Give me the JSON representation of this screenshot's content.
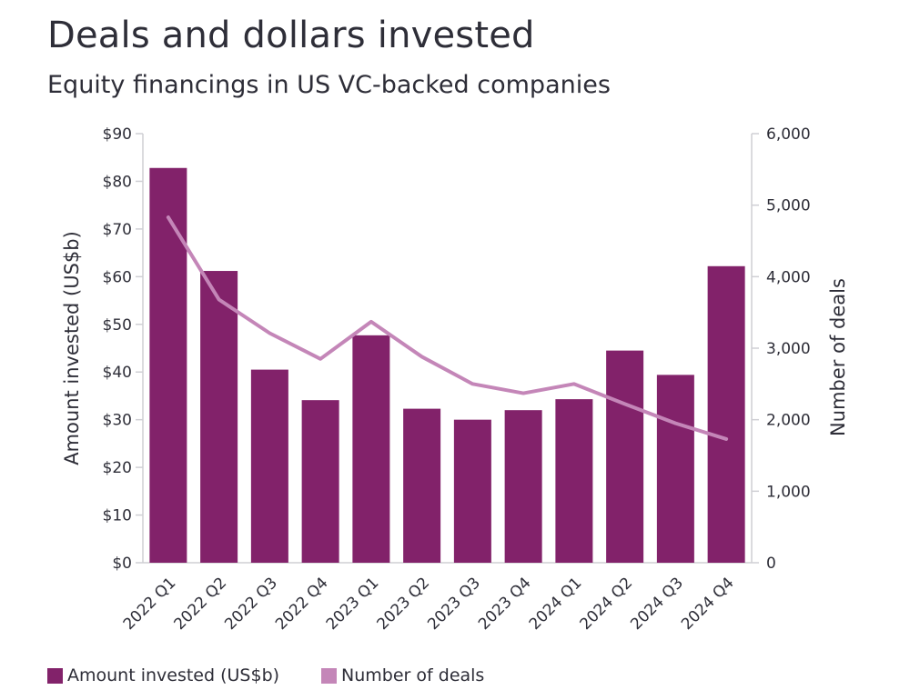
{
  "chart_data": {
    "type": "bar",
    "title": "Deals and dollars invested",
    "subtitle": "Equity financings in US VC-backed companies",
    "categories": [
      "2022 Q1",
      "2022 Q2",
      "2022 Q3",
      "2022 Q4",
      "2023 Q1",
      "2023 Q2",
      "2023 Q3",
      "2023 Q4",
      "2024 Q1",
      "2024 Q2",
      "2024 Q3",
      "2024 Q4"
    ],
    "series": [
      {
        "name": "Amount invested (US$b)",
        "type": "bar",
        "axis": "left",
        "values": [
          82.8,
          61.2,
          40.5,
          34.1,
          47.7,
          32.3,
          30.0,
          32.0,
          34.3,
          44.5,
          39.4,
          62.2
        ]
      },
      {
        "name": "Number of deals",
        "type": "line",
        "axis": "right",
        "values": [
          4830,
          3680,
          3210,
          2850,
          3370,
          2880,
          2500,
          2370,
          2500,
          2220,
          1950,
          1730
        ]
      }
    ],
    "ylabel": "Amount invested (US$b)",
    "y2label": "Number of deals",
    "ylim": [
      0,
      90
    ],
    "y2lim": [
      0,
      6000
    ],
    "yticks": [
      "$0",
      "$10",
      "$20",
      "$30",
      "$40",
      "$50",
      "$60",
      "$70",
      "$80",
      "$90"
    ],
    "y2ticks": [
      "0",
      "1,000",
      "2,000",
      "3,000",
      "4,000",
      "5,000",
      "6,000"
    ],
    "legend_position": "bottom-left",
    "colors": {
      "bar": "#82226a",
      "line": "#c486b8",
      "axis": "#cfcfd4",
      "text": "#2e2e38"
    }
  }
}
